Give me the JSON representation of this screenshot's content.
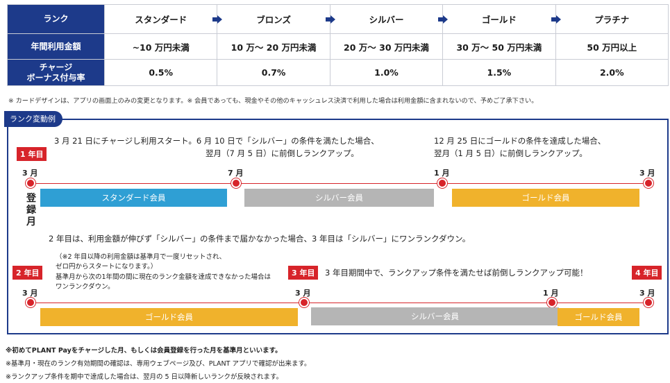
{
  "table": {
    "row_labels": [
      "ランク",
      "年間利用金額",
      "チャージ",
      "ボーナス付与率"
    ],
    "ranks": [
      "スタンダード",
      "ブロンズ",
      "シルバー",
      "ゴールド",
      "プラチナ"
    ],
    "amounts": [
      "~10 万円未満",
      "10 万～ 20 万円未満",
      "20 万～ 30 万円未満",
      "30 万～ 50 万円未満",
      "50 万円以上"
    ],
    "rates": [
      "0.5%",
      "0.7%",
      "1.0%",
      "1.5%",
      "2.0%"
    ]
  },
  "notes": {
    "top": "※ カードデザインは、アプリの画面上のみの変更となります。※ 会員であっても、現金やその他のキャッシュレス決済で利用した場合は利用金額に含まれないので、予めご了承下さい。"
  },
  "example": {
    "label": "ランク変動例",
    "year1_tag": "1 年目",
    "text1_line1": "3 月 21 日にチャージし利用スタート。6 月 10 日で「シルバー」の条件を満たした場合、",
    "text1_line2": "翌月（7 月 5 日）に前倒しランクアップ。",
    "text2_line1": "12 月  25  日にゴールドの条件を達成した場合、",
    "text2_line2": "翌月（1 月  5  日）に前倒しランクアップ。",
    "months1": [
      "3 月",
      "7 月",
      "1 月",
      "3 月"
    ],
    "bars1": [
      "スタンダード会員",
      "シルバー会員",
      "ゴールド会員"
    ],
    "register_label": [
      "登",
      "録",
      "月"
    ],
    "middle_text": "2  年目は、利用金額が伸びず「シルバー」の条件まで届かなかった場合、3  年目は「シルバー」にワンランクダウン。",
    "year2_tag": "2 年目",
    "small_line1": "（※2 年目以降の利用金額は基準月で一度リセットされ、",
    "small_line2": "ゼロ円からスタートになります。）",
    "small_line3": "基準月から次の1年間の間に現在のランク金額を達成できなかった場合は",
    "small_line4": "ワンランクダウン。",
    "year3_tag": "3 年目",
    "year3_text": "3  年目期間中で、ランクアップ条件を満たせば前倒しランクアップ可能！",
    "year4_tag": "4 年目",
    "months2": [
      "3 月",
      "3 月",
      "1 月",
      "3 月"
    ],
    "bars2": [
      "ゴールド会員",
      "シルバー会員",
      "ゴールド会員"
    ]
  },
  "footnotes": [
    "※初めてPLANT Payをチャージした月、もしくは会員登録を行った月を基準月といいます。",
    "※基準月・現在のランク有効期間の確認は、専用ウェブページ及び、PLANT  アプリで確認が出来ます。",
    "※ランクアップ条件を期中で達成した場合は、翌月の  5  日以降新しいランクが反映されます。"
  ],
  "colors": {
    "navy": "#1d3a8a",
    "red": "#d7242a",
    "blue": "#2f9fd4",
    "gray": "#b5b5b5",
    "gold": "#f0b22c",
    "pink": "#e0267d"
  }
}
